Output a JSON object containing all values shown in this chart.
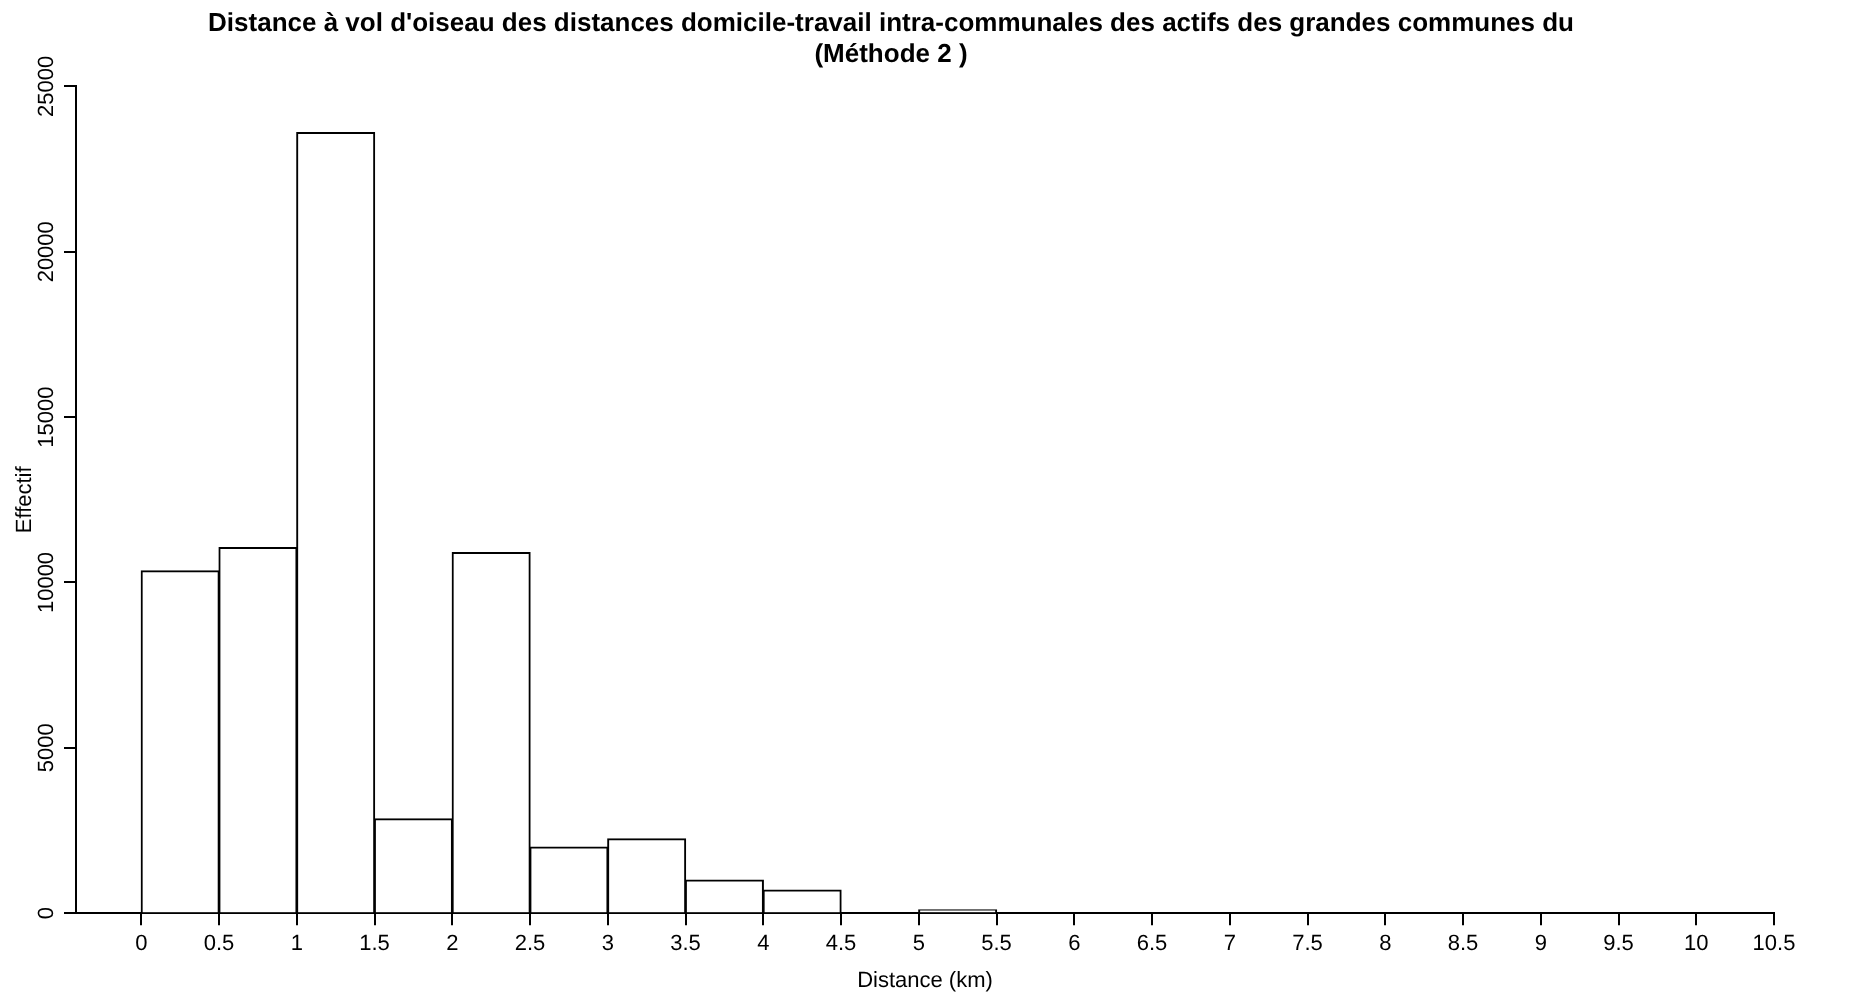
{
  "chart_data": {
    "type": "histogram",
    "title": "Distance à vol d'oiseau des distances domicile-travail intra-communales des actifs des grandes communes du",
    "subtitle": "(Méthode 2 )",
    "xlabel": "Distance (km)",
    "ylabel": "Effectif",
    "bins": [
      0,
      0.5,
      1,
      1.5,
      2,
      2.5,
      3,
      3.5,
      4,
      4.5,
      5,
      5.5,
      6,
      6.5,
      7,
      7.5,
      8,
      8.5,
      9,
      9.5,
      10,
      10.5
    ],
    "values": [
      10350,
      11050,
      23600,
      2850,
      10900,
      2000,
      2250,
      1000,
      700,
      0,
      100,
      0,
      0,
      0,
      0,
      0,
      0,
      0,
      0,
      0,
      0
    ],
    "color": "#ffffff",
    "xlim": [
      -0.42,
      10.5
    ],
    "xticks": [
      0,
      0.5,
      1,
      1.5,
      2,
      2.5,
      3,
      3.5,
      4,
      4.5,
      5,
      5.5,
      6,
      6.5,
      7,
      7.5,
      8,
      8.5,
      9,
      9.5,
      10,
      10.5
    ],
    "ylim": [
      0,
      25000
    ],
    "yticks": [
      0,
      5000,
      10000,
      15000,
      20000,
      25000
    ],
    "grid": false,
    "legend": false
  }
}
